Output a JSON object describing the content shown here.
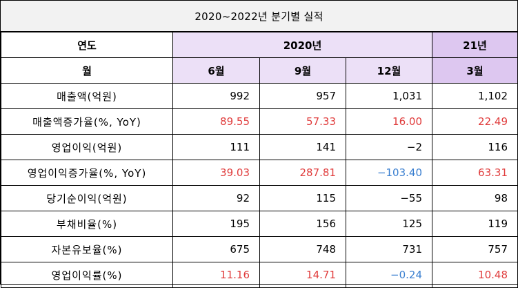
{
  "title": "2020~2022년 분기별 실적",
  "header": {
    "year_label": "연도",
    "year_2020": "2020년",
    "year_21": "21년",
    "month_label": "월",
    "months": [
      "6월",
      "9월",
      "12월",
      "3월"
    ]
  },
  "rows": [
    {
      "label": "매출액(억원)",
      "values": [
        "992",
        "957",
        "1,031",
        "1,102"
      ],
      "colors": [
        "",
        "",
        "",
        ""
      ]
    },
    {
      "label": "매출액증가율(%, YoY)",
      "values": [
        "89.55",
        "57.33",
        "16.00",
        "22.49"
      ],
      "colors": [
        "red",
        "red",
        "red",
        "red"
      ]
    },
    {
      "label": "영업이익(억원)",
      "values": [
        "111",
        "141",
        "−2",
        "116"
      ],
      "colors": [
        "",
        "",
        "",
        ""
      ]
    },
    {
      "label": "영업이익증가율(%, YoY)",
      "values": [
        "39.03",
        "287.81",
        "−103.40",
        "63.31"
      ],
      "colors": [
        "red",
        "red",
        "blue",
        "red"
      ]
    },
    {
      "label": "당기순이익(억원)",
      "values": [
        "92",
        "115",
        "−55",
        "98"
      ],
      "colors": [
        "",
        "",
        "",
        ""
      ]
    },
    {
      "label": "부채비율(%)",
      "values": [
        "195",
        "156",
        "125",
        "119"
      ],
      "colors": [
        "",
        "",
        "",
        ""
      ]
    },
    {
      "label": "자본유보율(%)",
      "values": [
        "675",
        "748",
        "731",
        "757"
      ],
      "colors": [
        "",
        "",
        "",
        ""
      ]
    },
    {
      "label": "영업이익률(%)",
      "values": [
        "11.16",
        "14.71",
        "−0.24",
        "10.48"
      ],
      "colors": [
        "red",
        "red",
        "blue",
        "red"
      ]
    }
  ]
}
